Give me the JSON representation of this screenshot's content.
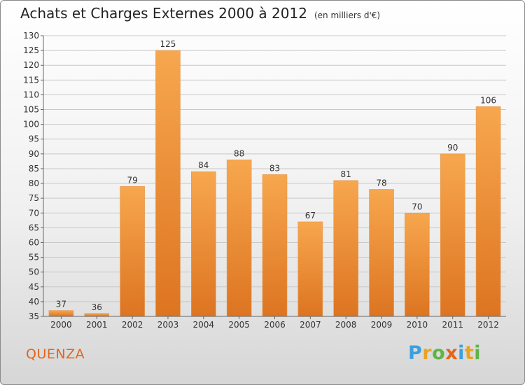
{
  "header": {
    "title": "Achats et Charges Externes 2000 à 2012",
    "unit": "(en milliers d'€)"
  },
  "footer": {
    "city": "QUENZA",
    "brand": "Proxiti"
  },
  "colors": {
    "bar_top": "#f7a74e",
    "bar_bottom": "#dd7421",
    "grid": "#c8c8c8",
    "city": "#e2651b"
  },
  "chart_data": {
    "type": "bar",
    "title": "Achats et Charges Externes 2000 à 2012",
    "subtitle": "(en milliers d'€)",
    "categories": [
      "2000",
      "2001",
      "2002",
      "2003",
      "2004",
      "2005",
      "2006",
      "2007",
      "2008",
      "2009",
      "2010",
      "2011",
      "2012"
    ],
    "values": [
      37,
      36,
      79,
      125,
      84,
      88,
      83,
      67,
      81,
      78,
      70,
      90,
      106
    ],
    "ylim": [
      35,
      130
    ],
    "yticks": [
      35,
      40,
      45,
      50,
      55,
      60,
      65,
      70,
      75,
      80,
      85,
      90,
      95,
      100,
      105,
      110,
      115,
      120,
      125,
      130
    ],
    "grid": true,
    "data_labels": true
  }
}
